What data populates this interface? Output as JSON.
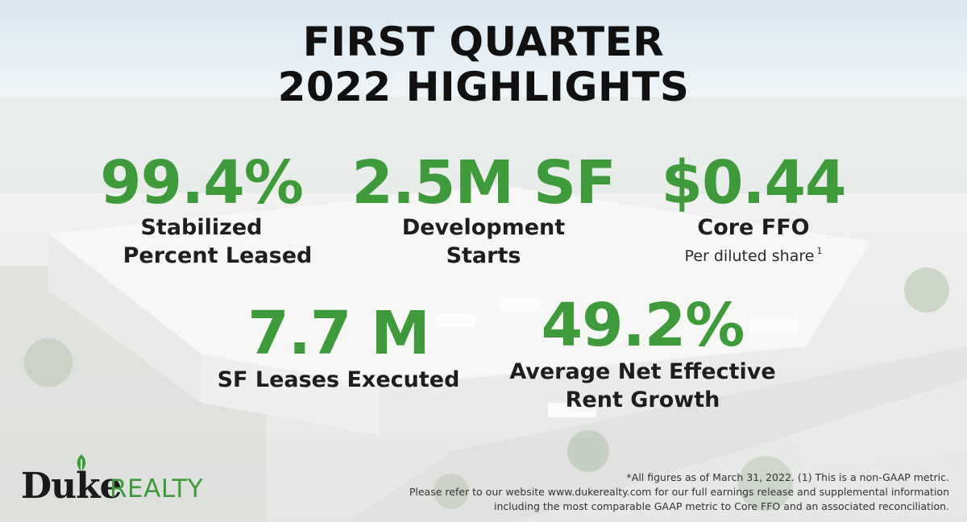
{
  "title": {
    "line1": "FIRST QUARTER",
    "line2": "2022 HIGHLIGHTS"
  },
  "stats": [
    {
      "value": "99.4%",
      "label_line1": "Stabilized",
      "label_line2": "Percent Leased"
    },
    {
      "value": "2.5M SF",
      "label_line1": "Development",
      "label_line2": "Starts"
    },
    {
      "value": "$0.44",
      "label_line1": "Core FFO",
      "sub": "Per diluted share",
      "sub_mark": "1"
    },
    {
      "value": "7.7 M",
      "label_line1": "SF Leases Executed"
    },
    {
      "value": "49.2%",
      "label_line1": "Average Net Effective",
      "label_line2": "Rent Growth"
    }
  ],
  "footnote": {
    "line1": "*All figures as of March 31, 2022. (1) This is a non-GAAP metric.",
    "line2": "Please refer to our website www.dukerealty.com for our full earnings release and supplemental information",
    "line3": "including the most comparable GAAP metric to Core FFO and an associated reconciliation."
  },
  "logo": {
    "word1": "Duke",
    "word2": "REALTY"
  },
  "colors": {
    "accent_green": "#3f9a3b",
    "title_black": "#111111"
  }
}
